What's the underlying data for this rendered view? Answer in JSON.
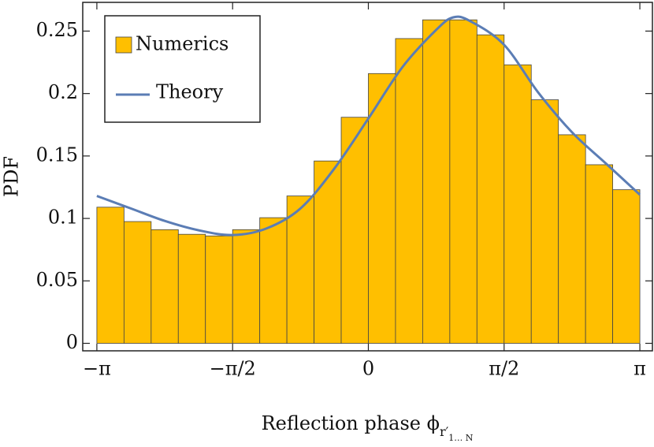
{
  "chart_data": {
    "type": "histogram",
    "ylabel": "PDF",
    "xlabel": "Reflection phase ϕ",
    "xlabel_sub": "r′",
    "xlabel_subsub": "1… N",
    "bins": [
      -3.1416,
      -2.8274,
      -2.5133,
      -2.1991,
      -1.885,
      -1.5708,
      -1.2566,
      -0.9425,
      -0.6283,
      -0.3142,
      0,
      0.3142,
      0.6283,
      0.9425,
      1.2566,
      1.5708,
      1.885,
      2.1991,
      2.5133,
      2.8274,
      3.1416
    ],
    "series": [
      {
        "name": "Numerics",
        "color": "#ffbf00",
        "values": [
          0.109,
          0.0975,
          0.091,
          0.0873,
          0.086,
          0.091,
          0.1006,
          0.118,
          0.146,
          0.181,
          0.216,
          0.244,
          0.259,
          0.259,
          0.247,
          0.223,
          0.195,
          0.167,
          0.143,
          0.123
        ]
      },
      {
        "name": "Theory",
        "color": "#5b7db5",
        "x": [
          -3.1416,
          -2.7489,
          -2.3562,
          -1.9635,
          -1.5708,
          -1.1781,
          -0.7854,
          -0.3927,
          0,
          0.3927,
          0.7854,
          0.9817,
          1.1781,
          1.5708,
          1.9635,
          2.3562,
          2.7489,
          3.1416
        ],
        "values": [
          0.118,
          0.108,
          0.098,
          0.0905,
          0.0867,
          0.092,
          0.108,
          0.14,
          0.18,
          0.221,
          0.251,
          0.261,
          0.258,
          0.239,
          0.201,
          0.169,
          0.144,
          0.119
        ]
      }
    ],
    "xlim": [
      -3.305,
      3.287
    ],
    "ylim": [
      -0.006,
      0.273
    ],
    "xticks": [
      {
        "value": -3.1416,
        "label": "−π"
      },
      {
        "value": -1.5708,
        "label": "−π/2"
      },
      0,
      {
        "value": 1.5708,
        "label": "π/2"
      },
      {
        "value": 3.1416,
        "label": "π"
      }
    ],
    "yticks": [
      0,
      0.05,
      0.1,
      0.15,
      0.2,
      0.25
    ],
    "legend": "upper left"
  }
}
